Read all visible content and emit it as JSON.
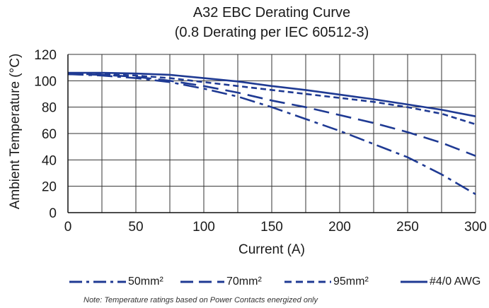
{
  "chart_data": {
    "type": "line",
    "title": "A32 EBC Derating Curve",
    "subtitle": "(0.8 Derating per IEC 60512-3)",
    "xlabel": "Current (A)",
    "ylabel": "Ambient Temperature (°C)",
    "xlim": [
      0,
      300
    ],
    "ylim": [
      0,
      120
    ],
    "xticks": [
      0,
      50,
      100,
      150,
      200,
      250,
      300
    ],
    "yticks": [
      0,
      20,
      40,
      60,
      80,
      100,
      120
    ],
    "grid": true,
    "legend_position": "bottom",
    "series": [
      {
        "name": "50mm²",
        "style": "dash-dot",
        "color": "#1f3a93",
        "x": [
          0,
          25,
          50,
          75,
          100,
          125,
          150,
          175,
          200,
          225,
          250,
          275,
          300
        ],
        "y": [
          105,
          104,
          102,
          99,
          94,
          88,
          80,
          71,
          62,
          52,
          42,
          29,
          14
        ]
      },
      {
        "name": "70mm²",
        "style": "long-dash",
        "color": "#1f3a93",
        "x": [
          0,
          25,
          50,
          75,
          100,
          125,
          150,
          175,
          200,
          225,
          250,
          275,
          300
        ],
        "y": [
          105,
          104.5,
          103,
          100,
          96,
          91,
          85,
          80,
          74,
          68,
          61,
          53,
          43
        ]
      },
      {
        "name": "95mm²",
        "style": "short-dash",
        "color": "#1f3a93",
        "x": [
          0,
          25,
          50,
          75,
          100,
          125,
          150,
          175,
          200,
          225,
          250,
          275,
          300
        ],
        "y": [
          105,
          105,
          104,
          102,
          99,
          96,
          93,
          90,
          87,
          84,
          80,
          75,
          67
        ]
      },
      {
        "name": "#4/0 AWG",
        "style": "solid",
        "color": "#1f3a93",
        "x": [
          0,
          25,
          50,
          75,
          100,
          125,
          150,
          175,
          200,
          225,
          250,
          275,
          300
        ],
        "y": [
          106,
          106,
          105.5,
          104.5,
          102,
          99.5,
          96,
          93,
          89.5,
          86,
          82,
          78,
          73
        ]
      }
    ],
    "note": "Note: Temperature ratings based on Power Contacts energized only"
  }
}
